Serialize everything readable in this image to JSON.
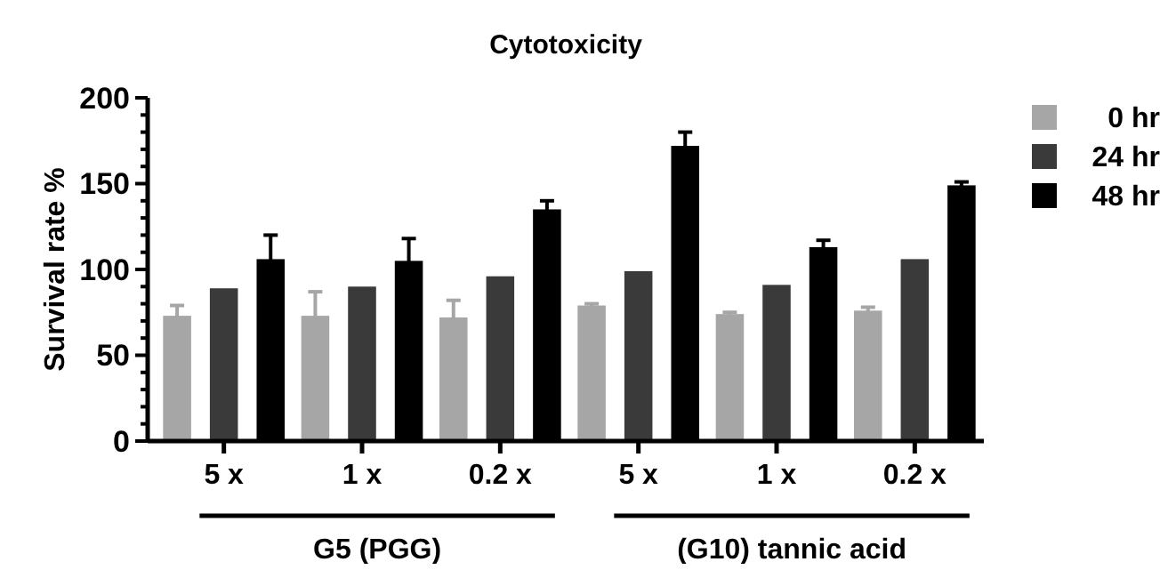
{
  "chart_data": {
    "type": "bar",
    "title": "Cytotoxicity",
    "ylabel": "Survival rate %",
    "categories": [
      "5 x",
      "1 x",
      "0.2 x",
      "5 x",
      "1 x",
      "0.2 x"
    ],
    "series": [
      {
        "name": "0 hr",
        "color": "#a6a6a6",
        "values": [
          73,
          73,
          72,
          79,
          74,
          76
        ],
        "errors": [
          6,
          14,
          10,
          1,
          1,
          2
        ]
      },
      {
        "name": "24 hr",
        "color": "#3a3a3a",
        "values": [
          89,
          90,
          96,
          99,
          91,
          106
        ]
      },
      {
        "name": "48 hr",
        "color": "#000000",
        "values": [
          106,
          105,
          135,
          172,
          113,
          149
        ],
        "errors": [
          14,
          13,
          5,
          8,
          4,
          2
        ]
      }
    ],
    "ylim": [
      0,
      200
    ],
    "yticks": [
      0,
      {
        "value": 10,
        "label": null
      },
      {
        "value": 20,
        "label": null
      },
      {
        "value": 30,
        "label": null
      },
      {
        "value": 40,
        "label": null
      },
      50,
      {
        "value": 60,
        "label": null
      },
      {
        "value": 70,
        "label": null
      },
      {
        "value": 80,
        "label": null
      },
      {
        "value": 90,
        "label": null
      },
      100,
      {
        "value": 110,
        "label": null
      },
      {
        "value": 120,
        "label": null
      },
      {
        "value": 130,
        "label": null
      },
      {
        "value": 140,
        "label": null
      },
      150,
      {
        "value": 160,
        "label": null
      },
      {
        "value": 170,
        "label": null
      },
      {
        "value": 180,
        "label": null
      },
      {
        "value": 190,
        "label": null
      },
      200
    ],
    "annotations": [
      "G5 (PGG)",
      "(G10) tannic acid"
    ],
    "legend": "top right",
    "grid": false
  }
}
